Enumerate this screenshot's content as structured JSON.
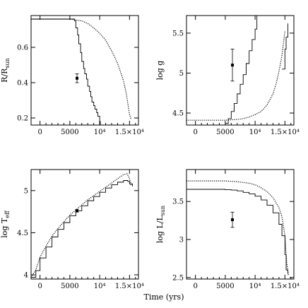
{
  "figure": {
    "x_title": "Time (yrs)"
  },
  "chart_data": [
    {
      "type": "line",
      "id": "radius",
      "ylabel_main": "R/R",
      "ylabel_sub": "sun",
      "xlim": [
        -1500,
        16500
      ],
      "ylim": [
        0.16,
        0.78
      ],
      "xticks": [
        {
          "v": 0,
          "label": "0"
        },
        {
          "v": 5000,
          "label": "5000"
        },
        {
          "v": 10000,
          "label": "10⁴"
        },
        {
          "v": 15000,
          "label": "1.5×10⁴"
        }
      ],
      "yticks": [
        {
          "v": 0.2,
          "label": "0.2"
        },
        {
          "v": 0.4,
          "label": "0.4"
        },
        {
          "v": 0.6,
          "label": "0.6"
        }
      ],
      "series": [
        {
          "style": "solid",
          "x": [
            -1500,
            5000,
            5800,
            6000,
            6300,
            6500,
            6800,
            7000,
            7300,
            7500,
            7800,
            8000,
            8300,
            8500,
            8700,
            9000,
            9200,
            9500,
            9700,
            10000,
            10100
          ],
          "y": [
            0.76,
            0.76,
            0.75,
            0.71,
            0.67,
            0.62,
            0.57,
            0.52,
            0.48,
            0.45,
            0.42,
            0.38,
            0.35,
            0.32,
            0.29,
            0.27,
            0.25,
            0.23,
            0.21,
            0.18,
            0.16
          ]
        },
        {
          "style": "dotted",
          "x": [
            -1500,
            5000,
            6000,
            7000,
            8000,
            9000,
            10000,
            11000,
            12000,
            13000,
            14000,
            14500,
            15000,
            15300
          ],
          "y": [
            0.76,
            0.76,
            0.755,
            0.75,
            0.735,
            0.71,
            0.68,
            0.64,
            0.58,
            0.51,
            0.41,
            0.33,
            0.22,
            0.19
          ]
        }
      ],
      "points": [
        {
          "x": 6200,
          "y": 0.425,
          "err": 0.025
        }
      ]
    },
    {
      "type": "line",
      "id": "gravity",
      "ylabel_main": "log g",
      "ylabel_sub": "",
      "xlim": [
        -1500,
        16500
      ],
      "ylim": [
        4.35,
        5.72
      ],
      "xticks": [
        {
          "v": 0,
          "label": "0"
        },
        {
          "v": 5000,
          "label": "5000"
        },
        {
          "v": 10000,
          "label": "10⁴"
        },
        {
          "v": 15000,
          "label": "1.5×10⁴"
        }
      ],
      "yticks": [
        {
          "v": 4.5,
          "label": "4.5"
        },
        {
          "v": 5,
          "label": "5"
        },
        {
          "v": 5.5,
          "label": "5.5"
        }
      ],
      "series": [
        {
          "style": "solid",
          "x": [
            5000,
            5500,
            6000,
            6500,
            7000,
            7500,
            8000,
            8500,
            9000,
            9500,
            10000,
            10300
          ],
          "y": [
            4.37,
            4.43,
            4.52,
            4.62,
            4.74,
            4.86,
            4.98,
            5.12,
            5.28,
            5.42,
            5.55,
            5.72
          ]
        },
        {
          "style": "dotted",
          "x": [
            -1500,
            5000,
            6000,
            7000,
            8000,
            9000,
            10000,
            11000,
            12000,
            13000,
            13500,
            14000,
            14500,
            15000
          ],
          "y": [
            4.41,
            4.41,
            4.415,
            4.42,
            4.43,
            4.45,
            4.48,
            4.52,
            4.6,
            4.74,
            4.86,
            5.02,
            5.22,
            5.52
          ]
        },
        {
          "style": "solid",
          "x": [
            14500,
            15000,
            15200,
            15500
          ],
          "y": [
            5.05,
            5.3,
            5.45,
            5.62
          ]
        }
      ],
      "points": [
        {
          "x": 6200,
          "y": 5.1,
          "err": 0.2
        }
      ]
    },
    {
      "type": "line",
      "id": "temperature",
      "ylabel_main": "log T",
      "ylabel_sub": "eff",
      "xlim": [
        -1500,
        16500
      ],
      "ylim": [
        3.95,
        5.25
      ],
      "xticks": [
        {
          "v": 0,
          "label": "0"
        },
        {
          "v": 5000,
          "label": "5000"
        },
        {
          "v": 10000,
          "label": "10⁴"
        },
        {
          "v": 15000,
          "label": "1.5×10⁴"
        }
      ],
      "yticks": [
        {
          "v": 4,
          "label": "4"
        },
        {
          "v": 4.5,
          "label": "4.5"
        },
        {
          "v": 5,
          "label": "5"
        }
      ],
      "series": [
        {
          "style": "solid",
          "x": [
            -1500,
            -700,
            0,
            1000,
            2000,
            3000,
            4000,
            5000,
            6000,
            7000,
            8000,
            9000,
            10000,
            11000,
            12000,
            13000,
            14000,
            14700,
            15000,
            15500
          ],
          "y": [
            3.97,
            4.05,
            4.2,
            4.33,
            4.45,
            4.54,
            4.62,
            4.7,
            4.76,
            4.82,
            4.88,
            4.93,
            4.98,
            5.03,
            5.07,
            5.1,
            5.12,
            5.11,
            5.08,
            5.05
          ]
        },
        {
          "style": "dotted",
          "x": [
            -1500,
            -700,
            0,
            1000,
            2000,
            3000,
            4000,
            5000,
            6000,
            7000,
            8000,
            9000,
            10000,
            11000,
            12000,
            13000,
            14000,
            14600,
            15000,
            15300
          ],
          "y": [
            3.97,
            4.06,
            4.21,
            4.34,
            4.46,
            4.55,
            4.63,
            4.71,
            4.77,
            4.83,
            4.89,
            4.94,
            4.99,
            5.04,
            5.09,
            5.14,
            5.19,
            5.2,
            5.14,
            5.06
          ]
        }
      ],
      "points": [
        {
          "x": 6200,
          "y": 4.76,
          "err": 0.015
        }
      ]
    },
    {
      "type": "line",
      "id": "luminosity",
      "ylabel_main": "log L/L",
      "ylabel_sub": "sun",
      "xlim": [
        -1500,
        16500
      ],
      "ylim": [
        2.48,
        3.92
      ],
      "xticks": [
        {
          "v": 0,
          "label": "0"
        },
        {
          "v": 5000,
          "label": "5000"
        },
        {
          "v": 10000,
          "label": "10⁴"
        },
        {
          "v": 15000,
          "label": "1.5×10⁴"
        }
      ],
      "yticks": [
        {
          "v": 2.5,
          "label": "2.5"
        },
        {
          "v": 3,
          "label": "3"
        },
        {
          "v": 3.5,
          "label": "3.5"
        }
      ],
      "series": [
        {
          "style": "solid",
          "x": [
            -1500,
            4000,
            5000,
            6000,
            7000,
            8000,
            9000,
            10000,
            11000,
            12000,
            13000,
            14000,
            14500,
            15000,
            15200,
            15500
          ],
          "y": [
            3.66,
            3.66,
            3.655,
            3.65,
            3.64,
            3.62,
            3.6,
            3.57,
            3.52,
            3.45,
            3.35,
            3.2,
            3.05,
            2.8,
            2.6,
            2.55
          ]
        },
        {
          "style": "dotted",
          "x": [
            -1500,
            5000,
            6000,
            7000,
            8000,
            9000,
            10000,
            11000,
            12000,
            13000,
            14000,
            14500,
            15000,
            15300,
            15600
          ],
          "y": [
            3.77,
            3.77,
            3.765,
            3.76,
            3.75,
            3.74,
            3.72,
            3.68,
            3.63,
            3.55,
            3.42,
            3.3,
            3.05,
            2.7,
            2.52
          ]
        }
      ],
      "points": [
        {
          "x": 6200,
          "y": 3.26,
          "err": 0.1
        }
      ]
    }
  ]
}
